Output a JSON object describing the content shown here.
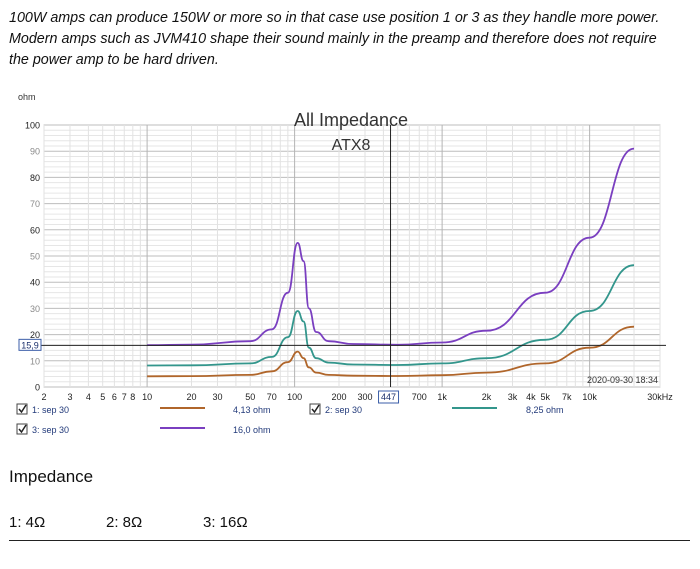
{
  "intro_lines": [
    "100W amps can produce 150W or more so in that case use position 1 or 3 as they handle more power.",
    "Modern amps such as JVM410 shape their sound mainly in the preamp and therefore does not require",
    "the power amp to be hard driven."
  ],
  "chart_data": {
    "type": "line",
    "title": "All Impedance",
    "subtitle": "ATX8",
    "ylabel": "ohm",
    "xlabel": "",
    "x_scale": "log",
    "xlim": [
      2,
      30000
    ],
    "ylim": [
      0,
      100
    ],
    "y_ticks": [
      0,
      10,
      20,
      30,
      40,
      50,
      60,
      70,
      80,
      90,
      100
    ],
    "x_ticks": [
      {
        "value": 2,
        "label": "2"
      },
      {
        "value": 3,
        "label": "3"
      },
      {
        "value": 4,
        "label": "4"
      },
      {
        "value": 5,
        "label": "5"
      },
      {
        "value": 6,
        "label": "6"
      },
      {
        "value": 7,
        "label": "7"
      },
      {
        "value": 8,
        "label": "8"
      },
      {
        "value": 10,
        "label": "10"
      },
      {
        "value": 20,
        "label": "20"
      },
      {
        "value": 30,
        "label": "30"
      },
      {
        "value": 50,
        "label": "50"
      },
      {
        "value": 70,
        "label": "70"
      },
      {
        "value": 100,
        "label": "100"
      },
      {
        "value": 200,
        "label": "200"
      },
      {
        "value": 300,
        "label": "300"
      },
      {
        "value": 700,
        "label": "700"
      },
      {
        "value": 1000,
        "label": "1k"
      },
      {
        "value": 2000,
        "label": "2k"
      },
      {
        "value": 3000,
        "label": "3k"
      },
      {
        "value": 4000,
        "label": "4k"
      },
      {
        "value": 5000,
        "label": "5k"
      },
      {
        "value": 7000,
        "label": "7k"
      },
      {
        "value": 10000,
        "label": "10k"
      },
      {
        "value": 30000,
        "label": "30kHz"
      }
    ],
    "cursor": {
      "x_label": "447",
      "y_label": "15,9",
      "x_value": 447,
      "y_value": 15.9
    },
    "timestamp": "2020-09-30 18:34",
    "grid": true,
    "legend_position": "bottom",
    "series": [
      {
        "name": "1: sep 30",
        "color": "#b0662b",
        "impedance_label": "4,13 ohm",
        "x": [
          10,
          20,
          50,
          70,
          90,
          105,
          115,
          125,
          140,
          170,
          250,
          500,
          1000,
          2000,
          5000,
          10000,
          20000
        ],
        "y": [
          4.1,
          4.15,
          4.6,
          6.0,
          9.5,
          13.5,
          11.0,
          7.5,
          5.5,
          4.6,
          4.3,
          4.2,
          4.5,
          5.5,
          9.0,
          15.0,
          23.0
        ]
      },
      {
        "name": "2: sep 30",
        "color": "#33968c",
        "impedance_label": "8,25 ohm",
        "x": [
          10,
          20,
          50,
          70,
          90,
          105,
          115,
          125,
          140,
          170,
          250,
          500,
          1000,
          2000,
          5000,
          10000,
          20000
        ],
        "y": [
          8.2,
          8.3,
          9.0,
          11.5,
          19.0,
          29.0,
          25.0,
          15.0,
          11.0,
          9.3,
          8.6,
          8.4,
          9.0,
          11.0,
          18.0,
          29.0,
          46.5
        ]
      },
      {
        "name": "3: sep 30",
        "color": "#7a3fc0",
        "impedance_label": "16,0 ohm",
        "x": [
          10,
          20,
          50,
          70,
          90,
          105,
          115,
          125,
          140,
          170,
          250,
          500,
          1000,
          2000,
          5000,
          10000,
          20000
        ],
        "y": [
          16.0,
          16.2,
          17.5,
          22.0,
          36.0,
          55.0,
          48.0,
          30.0,
          21.0,
          17.5,
          16.4,
          16.1,
          17.0,
          21.5,
          36.0,
          57.0,
          91.0
        ]
      }
    ]
  },
  "section": {
    "title": "Impedance",
    "positions": [
      "1: 4Ω",
      "2: 8Ω",
      "3: 16Ω"
    ]
  }
}
